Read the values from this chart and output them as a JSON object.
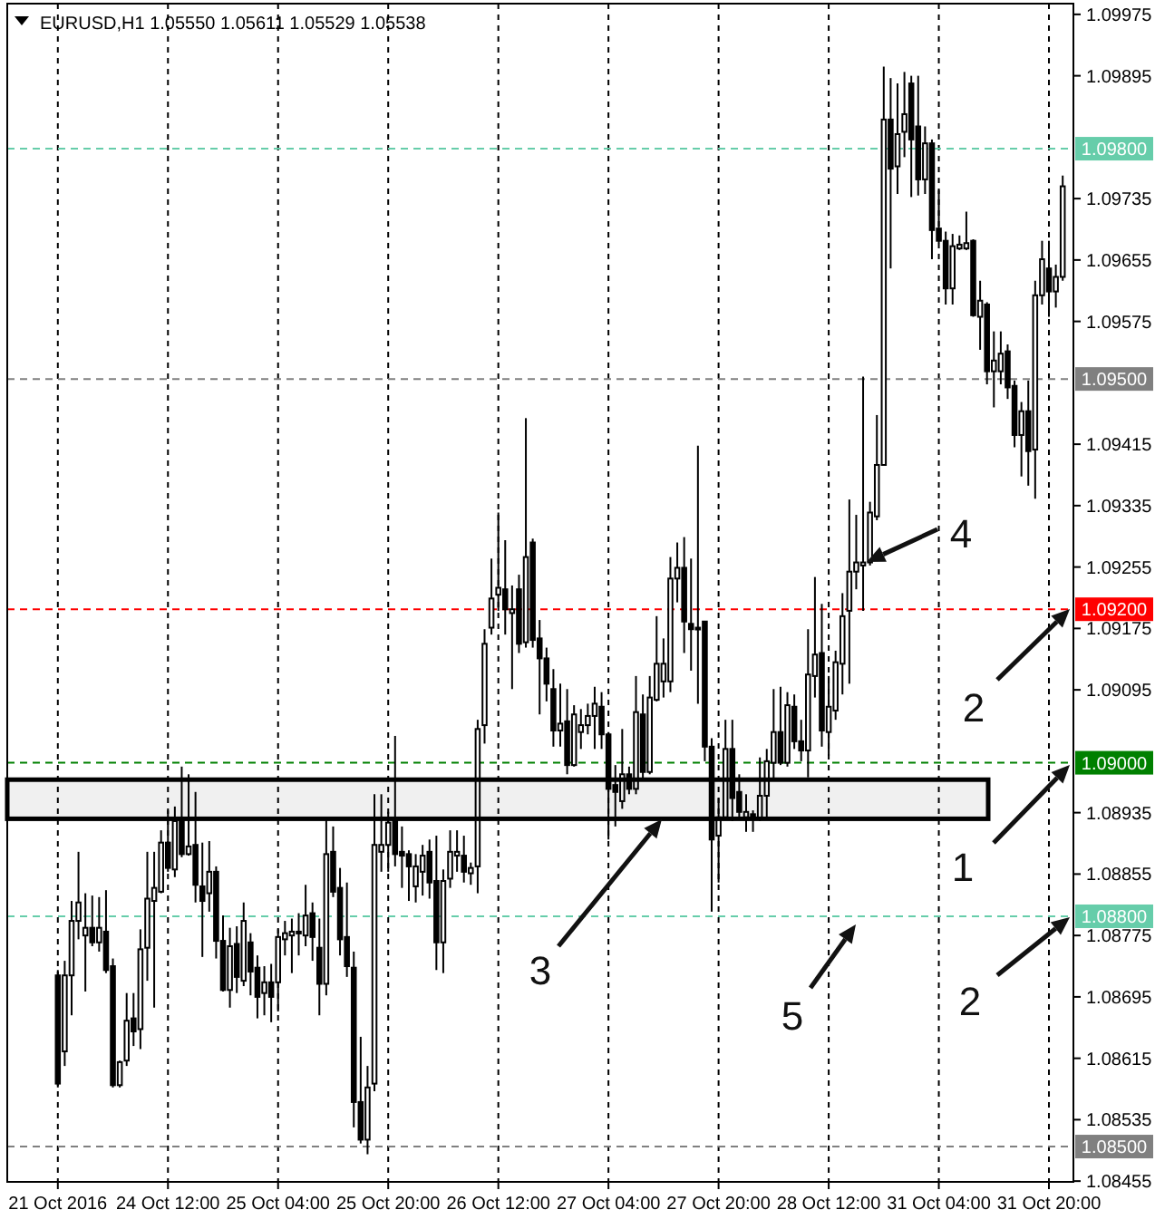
{
  "chart_data": {
    "type": "candlestick",
    "title": "EURUSD,H1  1.05550 1.05611 1.05529 1.05538",
    "categories": [
      "21 Oct 2016",
      null,
      null,
      null,
      null,
      null,
      null,
      null,
      null,
      null,
      null,
      null,
      null,
      null,
      null,
      null,
      "24 Oct 12:00",
      null,
      null,
      null,
      null,
      null,
      null,
      null,
      null,
      null,
      null,
      null,
      null,
      null,
      null,
      null,
      "25 Oct 04:00",
      null,
      null,
      null,
      null,
      null,
      null,
      null,
      null,
      null,
      null,
      null,
      null,
      null,
      null,
      null,
      "25 Oct 20:00",
      null,
      null,
      null,
      null,
      null,
      null,
      null,
      null,
      null,
      null,
      null,
      null,
      null,
      null,
      null,
      "26 Oct 12:00",
      null,
      null,
      null,
      null,
      null,
      null,
      null,
      null,
      null,
      null,
      null,
      null,
      null,
      null,
      null,
      "27 Oct 04:00",
      null,
      null,
      null,
      null,
      null,
      null,
      null,
      null,
      null,
      null,
      null,
      null,
      null,
      null,
      null,
      "27 Oct 20:00",
      null,
      null,
      null,
      null,
      null,
      null,
      null,
      null,
      null,
      null,
      null,
      null,
      null,
      null,
      null,
      "28 Oct 12:00",
      null,
      null,
      null,
      null,
      null,
      null,
      null,
      null,
      null,
      null,
      null,
      null,
      null,
      null,
      null,
      "31 Oct 04:00",
      null,
      null,
      null,
      null,
      null,
      null,
      null,
      null,
      null,
      null,
      null,
      null,
      null,
      null,
      null,
      "31 Oct 20:00",
      null,
      null
    ],
    "ohlc": [
      [
        1.08723,
        1.0873,
        1.08577,
        1.08582
      ],
      [
        1.08624,
        1.08742,
        1.08605,
        1.08723
      ],
      [
        1.08723,
        1.0882,
        1.08671,
        1.08794
      ],
      [
        1.08794,
        1.08884,
        1.0877,
        1.08818
      ],
      [
        1.08775,
        1.0883,
        1.08702,
        1.08785
      ],
      [
        1.08785,
        1.08827,
        1.08761,
        1.08766
      ],
      [
        1.08766,
        1.08825,
        1.08754,
        1.08785
      ],
      [
        1.0878,
        1.08834,
        1.08726,
        1.0873
      ],
      [
        1.08735,
        1.08745,
        1.08577,
        1.0858
      ],
      [
        1.0858,
        1.08612,
        1.08577,
        1.0861
      ],
      [
        1.08612,
        1.087,
        1.08605,
        1.08664
      ],
      [
        1.08667,
        1.087,
        1.08631,
        1.0865
      ],
      [
        1.08653,
        1.08783,
        1.08627,
        1.08757
      ],
      [
        1.08759,
        1.08884,
        1.08716,
        1.08823
      ],
      [
        1.0882,
        1.08884,
        1.08681,
        1.08837
      ],
      [
        1.08832,
        1.08912,
        1.0883,
        1.08896
      ],
      [
        1.08896,
        1.08938,
        1.08858,
        1.08863
      ],
      [
        1.08861,
        1.08943,
        1.08851,
        1.08924
      ],
      [
        1.08924,
        1.08995,
        1.08877,
        1.08881
      ],
      [
        1.08881,
        1.08985,
        1.08879,
        1.08891
      ],
      [
        1.08893,
        1.08962,
        1.08818,
        1.08841
      ],
      [
        1.08839,
        1.08896,
        1.08747,
        1.0882
      ],
      [
        1.0883,
        1.08898,
        1.08806,
        1.08858
      ],
      [
        1.08858,
        1.08865,
        1.08745,
        1.08768
      ],
      [
        1.08768,
        1.08801,
        1.08702,
        1.08704
      ],
      [
        1.08704,
        1.08785,
        1.08681,
        1.08761
      ],
      [
        1.08764,
        1.08787,
        1.087,
        1.08721
      ],
      [
        1.08716,
        1.08818,
        1.08709,
        1.08794
      ],
      [
        1.08766,
        1.08778,
        1.08697,
        1.08728
      ],
      [
        1.08733,
        1.08749,
        1.08667,
        1.08695
      ],
      [
        1.087,
        1.08735,
        1.08671,
        1.08714
      ],
      [
        1.08714,
        1.08738,
        1.08662,
        1.08695
      ],
      [
        1.08714,
        1.08783,
        1.08676,
        1.08773
      ],
      [
        1.0877,
        1.08794,
        1.08749,
        1.08778
      ],
      [
        1.08775,
        1.08797,
        1.08726,
        1.0878
      ],
      [
        1.08778,
        1.08804,
        1.08749,
        1.0878
      ],
      [
        1.08775,
        1.08841,
        1.08761,
        1.08801
      ],
      [
        1.08804,
        1.08818,
        1.08742,
        1.08773
      ],
      [
        1.08759,
        1.08797,
        1.08671,
        1.08712
      ],
      [
        1.08712,
        1.08926,
        1.08697,
        1.08881
      ],
      [
        1.08884,
        1.08917,
        1.08825,
        1.08832
      ],
      [
        1.08837,
        1.08863,
        1.08749,
        1.0877
      ],
      [
        1.08773,
        1.08844,
        1.08721,
        1.08735
      ],
      [
        1.08733,
        1.08754,
        1.08525,
        1.08558
      ],
      [
        1.08558,
        1.08643,
        1.08504,
        1.08509
      ],
      [
        1.08509,
        1.08605,
        1.0849,
        1.08577
      ],
      [
        1.08582,
        1.08959,
        1.08572,
        1.08893
      ],
      [
        1.08884,
        1.08959,
        1.08858,
        1.08893
      ],
      [
        1.08893,
        1.08936,
        1.08858,
        1.08922
      ],
      [
        1.08926,
        1.09035,
        1.08865,
        1.08881
      ],
      [
        1.08884,
        1.08917,
        1.08837,
        1.08879
      ],
      [
        1.08881,
        1.08886,
        1.0882,
        1.08865
      ],
      [
        1.08839,
        1.08881,
        1.08818,
        1.08865
      ],
      [
        1.08858,
        1.08893,
        1.08827,
        1.08879
      ],
      [
        1.08884,
        1.089,
        1.08823,
        1.08844
      ],
      [
        1.08846,
        1.08905,
        1.0873,
        1.08766
      ],
      [
        1.08766,
        1.08861,
        1.08726,
        1.08846
      ],
      [
        1.08849,
        1.08912,
        1.08837,
        1.08884
      ],
      [
        1.08879,
        1.08912,
        1.08858,
        1.08884
      ],
      [
        1.08879,
        1.08905,
        1.08844,
        1.08858
      ],
      [
        1.08856,
        1.0887,
        1.08841,
        1.08863
      ],
      [
        1.08865,
        1.09056,
        1.0883,
        1.09044
      ],
      [
        1.09049,
        1.09174,
        1.09025,
        1.09155
      ],
      [
        1.09176,
        1.09266,
        1.09167,
        1.09214
      ],
      [
        1.09219,
        1.09326,
        1.09198,
        1.09228
      ],
      [
        1.09226,
        1.0929,
        1.09167,
        1.092
      ],
      [
        1.09195,
        1.09231,
        1.09096,
        1.092
      ],
      [
        1.09226,
        1.09245,
        1.09143,
        1.09155
      ],
      [
        1.09157,
        1.09449,
        1.0915,
        1.09268
      ],
      [
        1.09287,
        1.09292,
        1.0915,
        1.0916
      ],
      [
        1.09162,
        1.09186,
        1.09063,
        1.09136
      ],
      [
        1.09136,
        1.0915,
        1.0908,
        1.09103
      ],
      [
        1.09096,
        1.09122,
        1.09021,
        1.09042
      ],
      [
        1.09042,
        1.09103,
        1.09021,
        1.09051
      ],
      [
        1.09054,
        1.09096,
        1.08985,
        1.08997
      ],
      [
        1.08997,
        1.09075,
        1.08995,
        1.09063
      ],
      [
        1.0904,
        1.0907,
        1.09018,
        1.09049
      ],
      [
        1.09049,
        1.09077,
        1.09037,
        1.09061
      ],
      [
        1.09061,
        1.09099,
        1.09018,
        1.09077
      ],
      [
        1.09073,
        1.09092,
        1.09018,
        1.09037
      ],
      [
        1.09037,
        1.0904,
        1.089,
        1.08966
      ],
      [
        1.08971,
        1.08997,
        1.08917,
        1.08962
      ],
      [
        1.0895,
        1.09044,
        1.0894,
        1.08985
      ],
      [
        1.08985,
        1.08995,
        1.08959,
        1.08966
      ],
      [
        1.08966,
        1.09113,
        1.08959,
        1.09066
      ],
      [
        1.09063,
        1.09089,
        1.08978,
        1.08988
      ],
      [
        1.08988,
        1.09113,
        1.08985,
        1.09085
      ],
      [
        1.09082,
        1.09191,
        1.0908,
        1.09129
      ],
      [
        1.09106,
        1.09162,
        1.09085,
        1.09129
      ],
      [
        1.09106,
        1.09268,
        1.09092,
        1.0924
      ],
      [
        1.0924,
        1.09287,
        1.09209,
        1.09254
      ],
      [
        1.09254,
        1.09294,
        1.09143,
        1.09184
      ],
      [
        1.09181,
        1.09266,
        1.0912,
        1.09174
      ],
      [
        1.09176,
        1.09413,
        1.09077,
        1.09174
      ],
      [
        1.09184,
        1.09184,
        1.09002,
        1.09021
      ],
      [
        1.09021,
        1.09032,
        1.08806,
        1.089
      ],
      [
        1.08905,
        1.08954,
        1.08844,
        1.08929
      ],
      [
        1.08929,
        1.09056,
        1.08926,
        1.09018
      ],
      [
        1.09018,
        1.09056,
        1.08924,
        1.08954
      ],
      [
        1.08962,
        1.08985,
        1.08926,
        1.08936
      ],
      [
        1.08929,
        1.08959,
        1.0891,
        1.08936
      ],
      [
        1.08933,
        1.08938,
        1.0891,
        1.08929
      ],
      [
        1.08927,
        1.09007,
        1.08924,
        1.08957
      ],
      [
        1.08957,
        1.09018,
        1.08927,
        1.09002
      ],
      [
        1.09,
        1.09096,
        1.08978,
        1.0904
      ],
      [
        1.0904,
        1.09099,
        1.08997,
        1.09
      ],
      [
        1.09,
        1.09092,
        1.08995,
        1.09075
      ],
      [
        1.09073,
        1.09089,
        1.09018,
        1.09028
      ],
      [
        1.09028,
        1.09056,
        1.09002,
        1.09016
      ],
      [
        1.09016,
        1.09174,
        1.08981,
        1.09115
      ],
      [
        1.09113,
        1.09242,
        1.09085,
        1.09141
      ],
      [
        1.09143,
        1.09207,
        1.09021,
        1.09042
      ],
      [
        1.0904,
        1.09113,
        1.09009,
        1.09073
      ],
      [
        1.09068,
        1.09146,
        1.09056,
        1.09131
      ],
      [
        1.09129,
        1.09221,
        1.09089,
        1.09191
      ],
      [
        1.09198,
        1.09343,
        1.09103,
        1.09249
      ],
      [
        1.09249,
        1.09323,
        1.09226,
        1.09261
      ],
      [
        1.09257,
        1.09503,
        1.09198,
        1.09261
      ],
      [
        1.09261,
        1.0934,
        1.09257,
        1.09326
      ],
      [
        1.09321,
        1.09453,
        1.09316,
        1.09388
      ],
      [
        1.09388,
        1.09907,
        1.09388,
        1.09838
      ],
      [
        1.09838,
        1.09892,
        1.09644,
        1.09774
      ],
      [
        1.09777,
        1.09885,
        1.09741,
        1.09819
      ],
      [
        1.09822,
        1.099,
        1.09789,
        1.09845
      ],
      [
        1.09885,
        1.09895,
        1.09737,
        1.09812
      ],
      [
        1.09829,
        1.09895,
        1.09739,
        1.0976
      ],
      [
        1.0976,
        1.09829,
        1.09741,
        1.09807
      ],
      [
        1.09807,
        1.09812,
        1.09656,
        1.09694
      ],
      [
        1.09696,
        1.09746,
        1.09677,
        1.0968
      ],
      [
        1.0968,
        1.09692,
        1.09597,
        1.09618
      ],
      [
        1.09618,
        1.09689,
        1.09597,
        1.09673
      ],
      [
        1.0967,
        1.09687,
        1.09668,
        1.09675
      ],
      [
        1.0967,
        1.09718,
        1.09668,
        1.09677
      ],
      [
        1.0968,
        1.09682,
        1.09581,
        1.09583
      ],
      [
        1.09581,
        1.09628,
        1.09538,
        1.09602
      ],
      [
        1.09597,
        1.096,
        1.09493,
        1.0951
      ],
      [
        1.0951,
        1.09562,
        1.09463,
        1.09524
      ],
      [
        1.0951,
        1.09562,
        1.09493,
        1.09533
      ],
      [
        1.09536,
        1.09545,
        1.09474,
        1.09489
      ],
      [
        1.09491,
        1.09498,
        1.09411,
        1.09427
      ],
      [
        1.09427,
        1.0947,
        1.09373,
        1.09458
      ],
      [
        1.09458,
        1.09498,
        1.09361,
        1.09406
      ],
      [
        1.09408,
        1.09628,
        1.09344,
        1.09609
      ],
      [
        1.09609,
        1.0968,
        1.09597,
        1.09656
      ],
      [
        1.09644,
        1.0968,
        1.09581,
        1.09614
      ],
      [
        1.09614,
        1.09649,
        1.09593,
        1.09633
      ],
      [
        1.09633,
        1.09765,
        1.09628,
        1.09751
      ]
    ],
    "ylim": [
      1.08454,
      1.09989
    ],
    "yticks": [
      1.08455,
      1.08535,
      1.08615,
      1.08695,
      1.08775,
      1.08855,
      1.08935,
      1.09095,
      1.09175,
      1.09255,
      1.09335,
      1.09415,
      1.09575,
      1.09655,
      1.09735,
      1.09895,
      1.09975
    ],
    "grid": "x",
    "ref_lines": [
      {
        "axis": "y",
        "value": 1.098,
        "label": "1.09800",
        "color": "#66cdaa",
        "line_style": "dashed"
      },
      {
        "axis": "y",
        "value": 1.095,
        "label": "1.09500",
        "color": "#808080",
        "line_style": "dashed"
      },
      {
        "axis": "y",
        "value": 1.092,
        "label": "1.09200",
        "color": "#ff0000",
        "line_style": "dashed"
      },
      {
        "axis": "y",
        "value": 1.09,
        "label": "1.09000",
        "color": "#008000",
        "line_style": "dashed"
      },
      {
        "axis": "y",
        "value": 1.088,
        "label": "1.08800",
        "color": "#66cdaa",
        "line_style": "dashed"
      },
      {
        "axis": "y",
        "value": 1.085,
        "label": "1.08500",
        "color": "#808080",
        "line_style": "dashed"
      }
    ],
    "bands": [
      {
        "axis": "y",
        "from": 1.08927,
        "to": 1.08978,
        "color": "#000000"
      }
    ],
    "annotations": [
      "4",
      "2",
      "1",
      "2",
      "3",
      "5"
    ]
  }
}
